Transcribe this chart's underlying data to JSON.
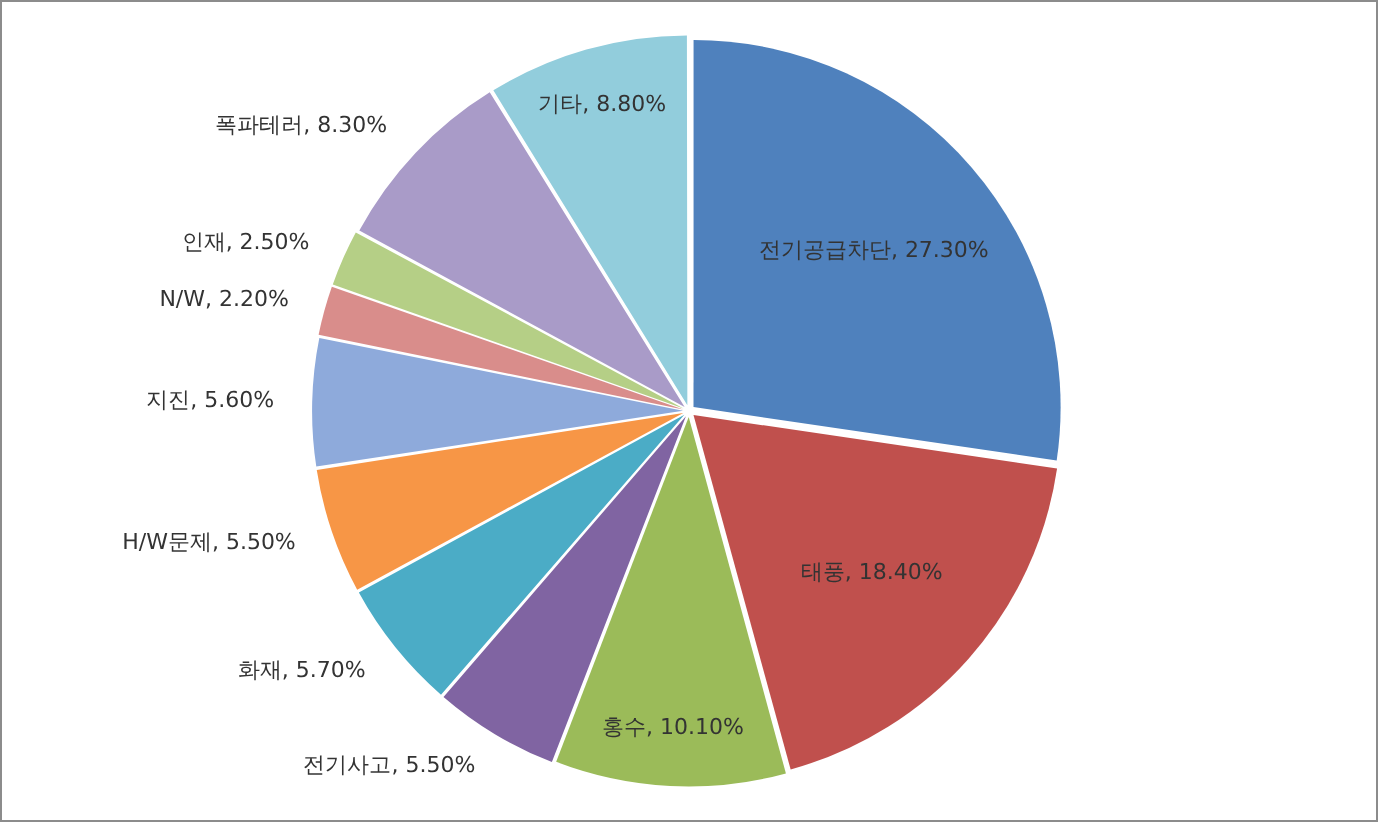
{
  "chart_data": {
    "type": "pie",
    "categories": [
      "전기공급차단",
      "태풍",
      "홍수",
      "전기사고",
      "화재",
      "H/W문제",
      "지진",
      "N/W",
      "인재",
      "폭파테러",
      "기타"
    ],
    "values": [
      27.3,
      18.4,
      10.1,
      5.5,
      5.7,
      5.5,
      5.6,
      2.2,
      2.5,
      8.3,
      8.8
    ],
    "colors": [
      "#4f81bd",
      "#c0504d",
      "#9bbb59",
      "#8064a2",
      "#4bacc6",
      "#f79646",
      "#8eaadb",
      "#d98d8b",
      "#b5cf86",
      "#a99bc8",
      "#92cddc"
    ],
    "value_labels": [
      "27.30%",
      "18.40%",
      "10.10%",
      "5.50%",
      "5.70%",
      "5.50%",
      "5.60%",
      "2.20%",
      "2.50%",
      "8.30%",
      "8.80%"
    ]
  }
}
